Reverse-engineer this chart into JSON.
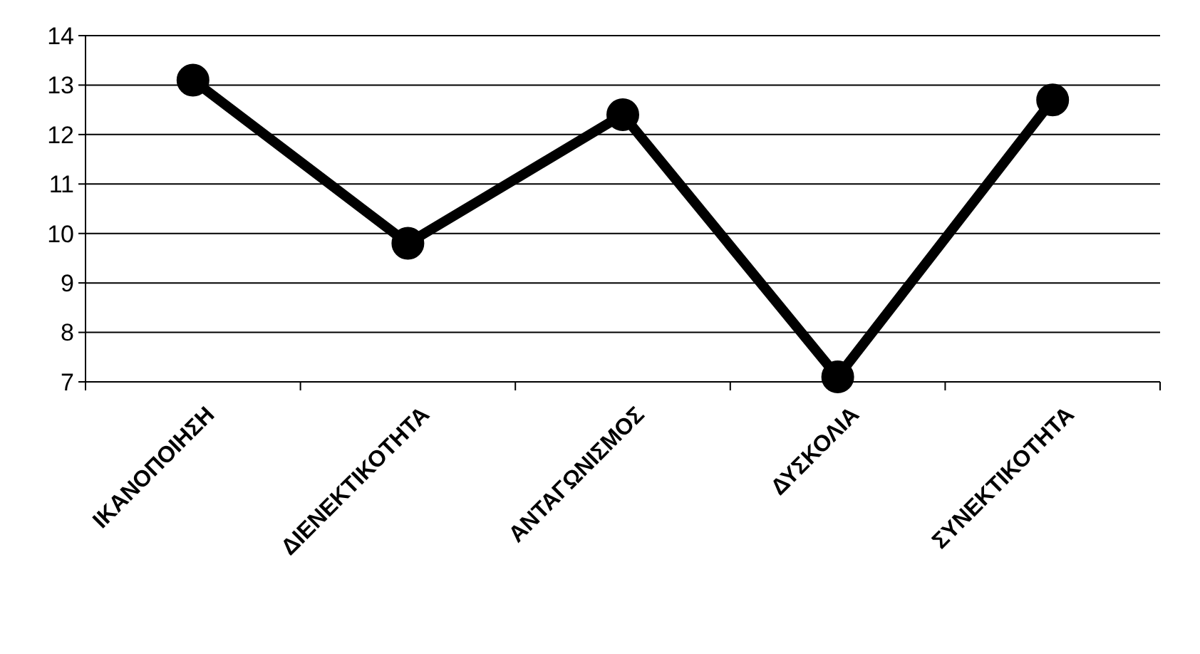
{
  "chart_data": {
    "type": "line",
    "categories": [
      "ΙΚΑΝΟΠΟΙΗΣΗ",
      "ΔΙΕΝΕΚΤΙΚΟΤΗΤΑ",
      "ΑΝΤΑΓΩΝΙΣΜΟΣ",
      "ΔΥΣΚΟΛΙΑ",
      "ΣΥΝΕΚΤΙΚΟΤΗΤΑ"
    ],
    "series": [
      {
        "color": "#000000",
        "values": [
          13.1,
          9.8,
          12.4,
          7.1,
          12.7
        ]
      }
    ],
    "ylim": [
      7,
      14
    ],
    "yticks": [
      7,
      8,
      9,
      10,
      11,
      12,
      13,
      14
    ],
    "grid": "y",
    "marker": "circle",
    "line_style": "solid"
  }
}
